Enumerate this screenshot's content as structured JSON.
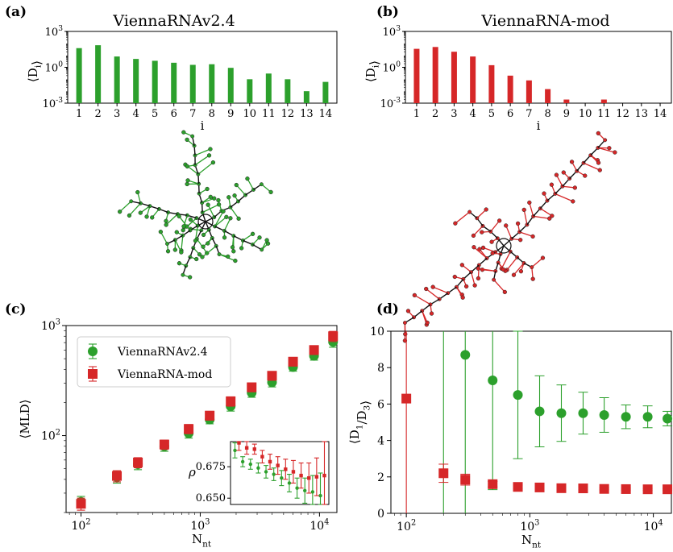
{
  "colors": {
    "green": "#2ca02c",
    "red": "#d62728"
  },
  "panel_labels": {
    "a": "(a)",
    "b": "(b)",
    "c": "(c)",
    "d": "(d)"
  },
  "chart_data": [
    {
      "id": "a",
      "type": "bar",
      "title": "ViennaRNAv2.4",
      "xlabel": "i",
      "ylabel": "⟨D_i⟩",
      "yscale": "log",
      "ylim": [
        0.001,
        1000
      ],
      "yticks": [
        "10^-3",
        "10^0",
        "10^3"
      ],
      "categories": [
        "1",
        "2",
        "3",
        "4",
        "5",
        "6",
        "7",
        "8",
        "9",
        "10",
        "11",
        "12",
        "13",
        "14"
      ],
      "values": [
        40,
        70,
        8,
        5,
        3.5,
        2.4,
        1.6,
        1.8,
        0.9,
        0.1,
        0.3,
        0.1,
        0.01,
        0.06
      ],
      "color": "#2ca02c"
    },
    {
      "id": "b",
      "type": "bar",
      "title": "ViennaRNA-mod",
      "xlabel": "i",
      "ylabel": "⟨D_i⟩",
      "yscale": "log",
      "ylim": [
        0.001,
        1000
      ],
      "yticks": [
        "10^-3",
        "10^0",
        "10^3"
      ],
      "categories": [
        "1",
        "2",
        "3",
        "4",
        "5",
        "6",
        "7",
        "8",
        "9",
        "10",
        "11",
        "12",
        "13",
        "14"
      ],
      "values": [
        35,
        50,
        20,
        8,
        1.5,
        0.2,
        0.08,
        0.015,
        0.002,
        0,
        0.002,
        0,
        0,
        0
      ],
      "color": "#d62728"
    },
    {
      "id": "c",
      "type": "scatter",
      "xscale": "log",
      "yscale": "log",
      "xlabel": "N_nt",
      "ylabel": "⟨MLD⟩",
      "xlim": [
        75,
        14000
      ],
      "ylim": [
        20,
        1000
      ],
      "xticks": [
        "10^2",
        "10^3",
        "10^4"
      ],
      "yticks": [
        "10^2",
        "10^3"
      ],
      "legend": "upper-left",
      "series": [
        {
          "name": "ViennaRNAv2.4",
          "marker": "circle",
          "color": "#2ca02c",
          "x": [
            100,
            200,
            300,
            500,
            800,
            1200,
            1800,
            2700,
            4000,
            6000,
            9000,
            13000
          ],
          "y": [
            25,
            42,
            55,
            80,
            105,
            140,
            185,
            245,
            305,
            420,
            530,
            710
          ],
          "err": [
            3,
            5,
            6,
            8,
            10,
            12,
            18,
            22,
            28,
            35,
            45,
            75
          ]
        },
        {
          "name": "ViennaRNA-mod",
          "marker": "square",
          "color": "#d62728",
          "x": [
            100,
            200,
            300,
            500,
            800,
            1200,
            1800,
            2700,
            4000,
            6000,
            9000,
            13000
          ],
          "y": [
            24,
            43,
            57,
            83,
            115,
            152,
            205,
            275,
            350,
            470,
            600,
            800
          ],
          "err": [
            3,
            5,
            6,
            8,
            11,
            14,
            20,
            25,
            32,
            42,
            55,
            85
          ]
        }
      ],
      "inset": {
        "ylabel": "ρ",
        "yticks": [
          "0.650",
          "0.675"
        ],
        "ylim": [
          0.645,
          0.695
        ],
        "series": [
          {
            "name": "ViennaRNAv2.4",
            "color": "#2ca02c",
            "y": [
              0.688,
              0.679,
              0.677,
              0.674,
              0.671,
              0.669,
              0.666,
              0.662,
              0.658,
              0.656,
              0.655,
              0.652
            ],
            "err": [
              0.006,
              0.004,
              0.004,
              0.004,
              0.005,
              0.005,
              0.006,
              0.007,
              0.008,
              0.01,
              0.013,
              0.018
            ]
          },
          {
            "name": "ViennaRNA-mod",
            "color": "#d62728",
            "y": [
              0.694,
              0.69,
              0.689,
              0.683,
              0.679,
              0.676,
              0.673,
              0.671,
              0.668,
              0.666,
              0.667,
              0.668
            ],
            "err": [
              0.006,
              0.005,
              0.004,
              0.005,
              0.006,
              0.007,
              0.008,
              0.009,
              0.01,
              0.012,
              0.015,
              0.03
            ]
          }
        ]
      }
    },
    {
      "id": "d",
      "type": "scatter",
      "xscale": "log",
      "xlabel": "N_nt",
      "ylabel": "⟨D_1/D_3⟩",
      "xlim": [
        75,
        14000
      ],
      "ylim": [
        0,
        10
      ],
      "xticks": [
        "10^2",
        "10^3",
        "10^4"
      ],
      "yticks": [
        "0",
        "2",
        "4",
        "6",
        "8",
        "10"
      ],
      "series": [
        {
          "name": "ViennaRNAv2.4",
          "marker": "circle",
          "color": "#2ca02c",
          "x": [
            200,
            300,
            500,
            800,
            1200,
            1800,
            2700,
            4000,
            6000,
            9000,
            13000
          ],
          "y": [
            0.6,
            8.7,
            7.3,
            6.5,
            5.6,
            5.5,
            5.5,
            5.4,
            5.3,
            5.3,
            5.2
          ],
          "err": [
            12,
            12,
            6,
            3.5,
            1.95,
            1.55,
            1.15,
            0.95,
            0.65,
            0.6,
            0.4
          ]
        },
        {
          "name": "ViennaRNA-mod",
          "marker": "square",
          "color": "#d62728",
          "x": [
            100,
            200,
            300,
            500,
            800,
            1200,
            1800,
            2700,
            4000,
            6000,
            9000,
            13000
          ],
          "y": [
            6.3,
            2.2,
            1.85,
            1.6,
            1.45,
            1.42,
            1.38,
            1.37,
            1.34,
            1.33,
            1.32,
            1.32
          ],
          "err": [
            12,
            0.5,
            0.3,
            0.15,
            0.1,
            0.08,
            0.07,
            0.06,
            0.05,
            0.05,
            0.05,
            0.05
          ]
        }
      ]
    }
  ],
  "trees": {
    "a": {
      "color": "#2ca02c"
    },
    "b": {
      "color": "#d62728"
    }
  }
}
